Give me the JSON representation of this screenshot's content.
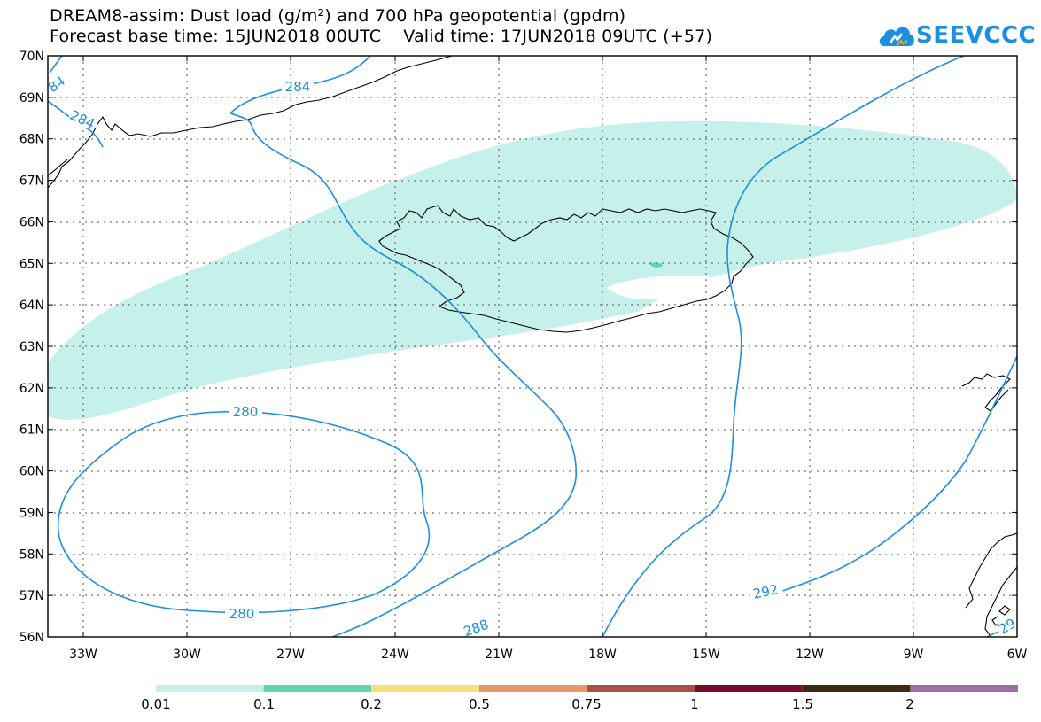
{
  "title_line1": "DREAM8-assim: Dust load (g/m²) and 700 hPa geopotential (gpdm)",
  "title_line2": "Forecast base time: 15JUN2018 00UTC    Valid time: 17JUN2018 09UTC (+57)",
  "logo_text": "SEEVCCC",
  "lat_labels": [
    "70N",
    "69N",
    "68N",
    "67N",
    "66N",
    "65N",
    "64N",
    "63N",
    "62N",
    "61N",
    "60N",
    "59N",
    "58N",
    "57N",
    "56N"
  ],
  "lon_labels": [
    "33W",
    "30W",
    "27W",
    "24W",
    "21W",
    "18W",
    "15W",
    "12W",
    "9W",
    "6W"
  ],
  "contour_labels": {
    "c284_top": "284",
    "c284_left": "284",
    "c284_edge": "84",
    "c280_top": "280",
    "c280_bottom": "280",
    "c288": "288",
    "c292": "292",
    "c29x_edge": "29"
  },
  "colorbar": {
    "labels": [
      "0.01",
      "0.1",
      "0.2",
      "0.5",
      "0.75",
      "1",
      "1.5",
      "2"
    ],
    "colors": [
      "#c6f0ea",
      "#5dd6b4",
      "#f5e37a",
      "#e59a6a",
      "#a8514b",
      "#7b0b2a",
      "#3b2a14",
      "#9b6fa3"
    ]
  },
  "colors": {
    "dust_low": "#c6f0ea",
    "dust_mid": "#5dd6b4",
    "contour": "#1a8fe3",
    "grid": "#555555",
    "coast": "#000000"
  }
}
